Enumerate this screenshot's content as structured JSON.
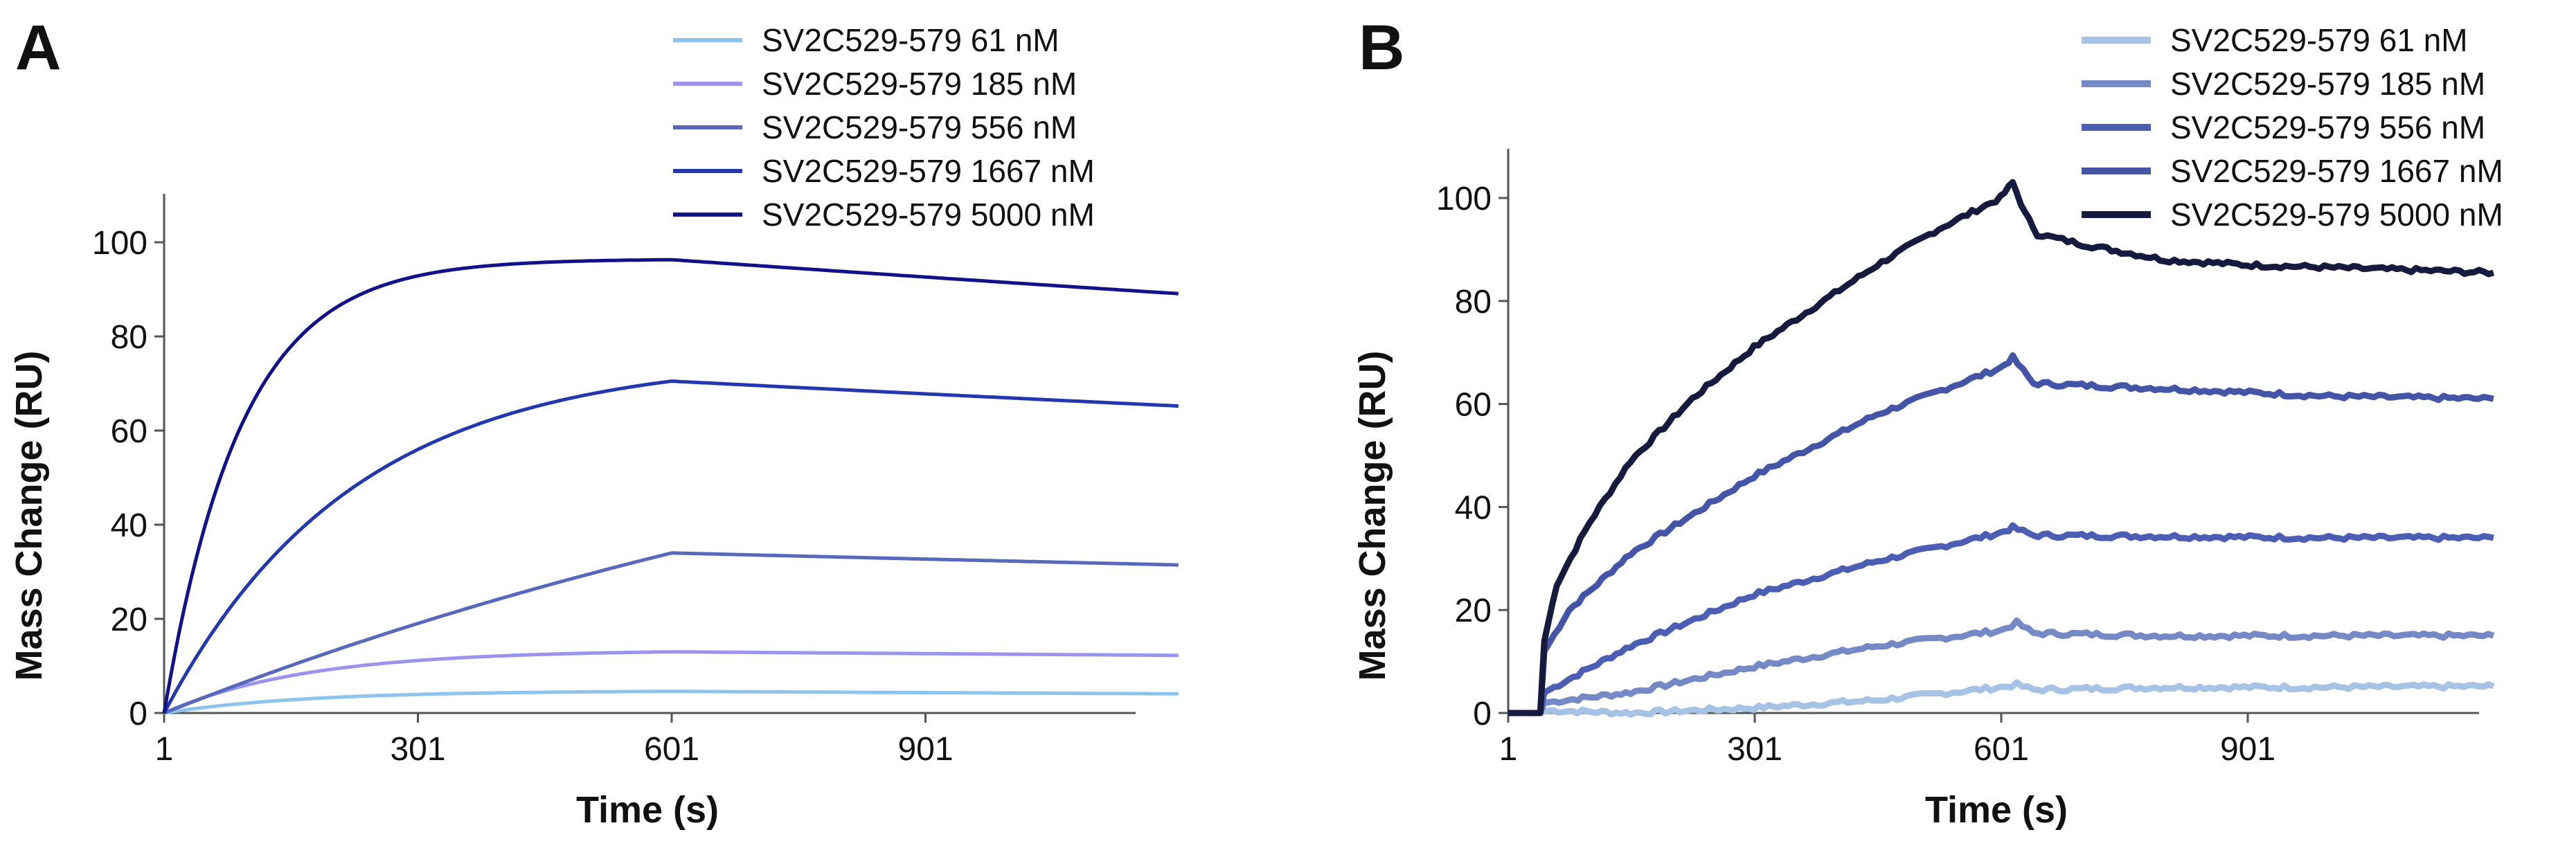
{
  "chart_data": [
    {
      "panel": "A",
      "type": "line",
      "xlabel": "Time (s)",
      "ylabel": "Mass Change (RU)",
      "xticks": [
        1,
        301,
        601,
        901
      ],
      "yticks": [
        0,
        20,
        40,
        60,
        80,
        100
      ],
      "xlim": [
        1,
        1200
      ],
      "ylim": [
        0,
        110
      ],
      "legend_position": "top-right",
      "series": [
        {
          "name": "SV2C529-579 61 nM",
          "color": "#8cc4ee",
          "kind": "fit",
          "plateau": 4.6,
          "kon_rate": 0.006,
          "koff_rate": 0.0002
        },
        {
          "name": "SV2C529-579 185 nM",
          "color": "#9a94ee",
          "kind": "fit",
          "plateau": 13.0,
          "kon_rate": 0.006,
          "koff_rate": 0.0001
        },
        {
          "name": "SV2C529-579 556 nM",
          "color": "#5768bd",
          "kind": "fit",
          "plateau": 34.0,
          "kon_rate": 0.0008,
          "koff_rate": 0.00013
        },
        {
          "name": "SV2C529-579 1667 nM",
          "color": "#2337ae",
          "kind": "fit",
          "plateau": 70.5,
          "kon_rate": 0.0045,
          "koff_rate": 0.00013
        },
        {
          "name": "SV2C529-579 5000 nM",
          "color": "#11118a",
          "kind": "fit",
          "plateau": 96.3,
          "kon_rate": 0.011,
          "koff_rate": 0.00013
        }
      ]
    },
    {
      "panel": "B",
      "type": "line",
      "xlabel": "Time (s)",
      "ylabel": "Mass Change (RU)",
      "xticks": [
        1,
        301,
        601,
        901
      ],
      "yticks": [
        0,
        20,
        40,
        60,
        80,
        100
      ],
      "xlim": [
        1,
        1200
      ],
      "ylim": [
        0,
        110
      ],
      "legend_position": "top-right",
      "series": [
        {
          "name": "SV2C529-579 61 nM",
          "color": "#a6c3e6",
          "kind": "data",
          "points": [
            [
              1,
              0
            ],
            [
              30,
              0
            ],
            [
              40,
              0
            ],
            [
              50,
              0.5
            ],
            [
              150,
              0
            ],
            [
              300,
              1
            ],
            [
              450,
              2.5
            ],
            [
              600,
              5
            ],
            [
              620,
              5.5
            ],
            [
              640,
              4.5
            ],
            [
              800,
              5
            ],
            [
              1000,
              5
            ],
            [
              1200,
              5.2
            ]
          ]
        },
        {
          "name": "SV2C529-579 185 nM",
          "color": "#7589c6",
          "kind": "data",
          "points": [
            [
              1,
              0
            ],
            [
              30,
              0
            ],
            [
              40,
              0
            ],
            [
              45,
              2
            ],
            [
              150,
              4
            ],
            [
              300,
              9
            ],
            [
              450,
              13
            ],
            [
              600,
              16
            ],
            [
              620,
              17.5
            ],
            [
              640,
              15.5
            ],
            [
              800,
              15
            ],
            [
              1000,
              15
            ],
            [
              1200,
              15
            ]
          ]
        },
        {
          "name": "SV2C529-579 556 nM",
          "color": "#4c5db4",
          "kind": "data",
          "points": [
            [
              1,
              0
            ],
            [
              30,
              0
            ],
            [
              40,
              0
            ],
            [
              45,
              4
            ],
            [
              150,
              13
            ],
            [
              300,
              23
            ],
            [
              450,
              29.5
            ],
            [
              600,
              35
            ],
            [
              615,
              36
            ],
            [
              640,
              34.5
            ],
            [
              800,
              34.3
            ],
            [
              1000,
              34
            ],
            [
              1200,
              34
            ]
          ]
        },
        {
          "name": "SV2C529-579 1667 nM",
          "color": "#4455a8",
          "kind": "data",
          "points": [
            [
              1,
              0
            ],
            [
              30,
              0
            ],
            [
              40,
              0
            ],
            [
              45,
              12
            ],
            [
              75,
              20
            ],
            [
              150,
              31
            ],
            [
              300,
              46
            ],
            [
              450,
              58
            ],
            [
              600,
              67
            ],
            [
              615,
              69
            ],
            [
              640,
              64
            ],
            [
              800,
              63
            ],
            [
              1000,
              61.5
            ],
            [
              1200,
              61
            ]
          ]
        },
        {
          "name": "SV2C529-579 5000 nM",
          "color": "#161a3e",
          "kind": "data",
          "points": [
            [
              1,
              0
            ],
            [
              30,
              0
            ],
            [
              40,
              0
            ],
            [
              45,
              14
            ],
            [
              60,
              25
            ],
            [
              100,
              37
            ],
            [
              150,
              49
            ],
            [
              225,
              61
            ],
            [
              300,
              71
            ],
            [
              375,
              79
            ],
            [
              450,
              87
            ],
            [
              525,
              94
            ],
            [
              600,
              100
            ],
            [
              615,
              103
            ],
            [
              630,
              97
            ],
            [
              645,
              93
            ],
            [
              700,
              91
            ],
            [
              800,
              88
            ],
            [
              900,
              87
            ],
            [
              1000,
              86.5
            ],
            [
              1100,
              86
            ],
            [
              1200,
              85.5
            ]
          ]
        }
      ]
    }
  ]
}
